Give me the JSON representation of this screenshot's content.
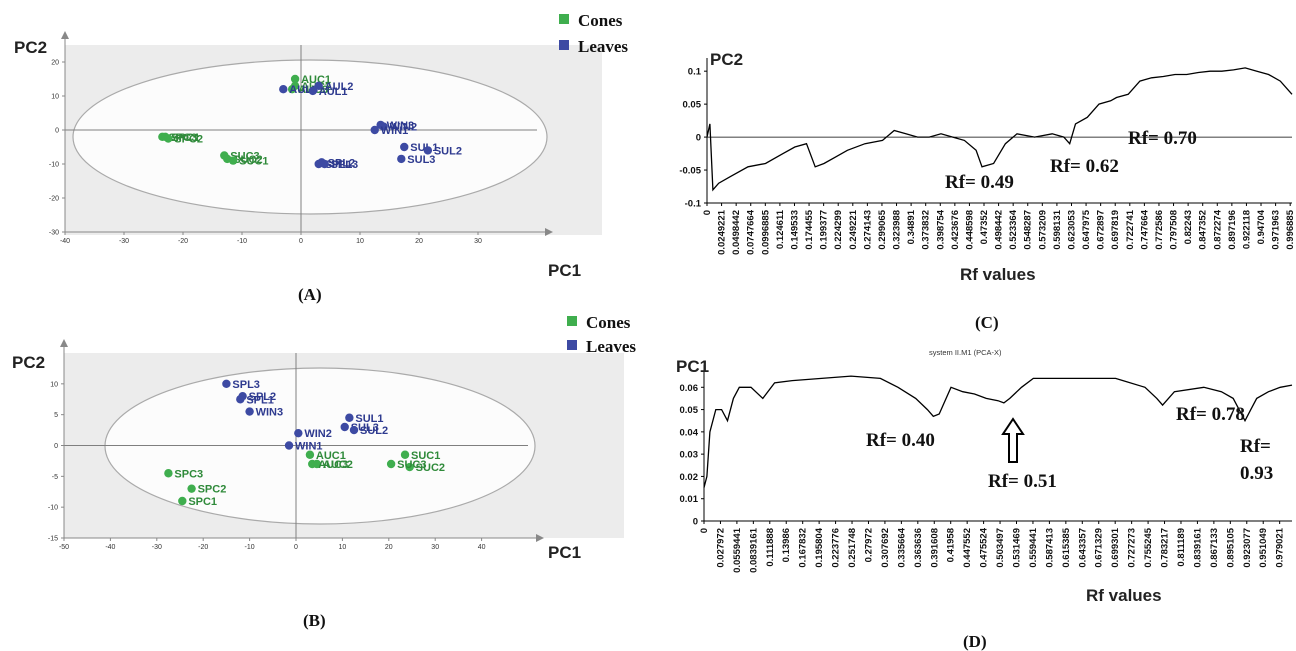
{
  "colors": {
    "cones": "#3fae4e",
    "leaves": "#3d4aa3",
    "cones_text": "#2f8a3a",
    "leaves_text": "#2e3a8f",
    "plot_bg": "#ececec",
    "line": "#000000"
  },
  "legend": {
    "cones": "Cones",
    "leaves": "Leaves"
  },
  "chart_data": [
    {
      "panel": "(A)",
      "type": "scatter",
      "xlabel": "PC1",
      "ylabel": "PC2",
      "xlim": [
        -40,
        40
      ],
      "ylim": [
        -30,
        25
      ],
      "xticks": [
        -40,
        -30,
        -20,
        -10,
        0,
        10,
        20,
        30
      ],
      "yticks": [
        -30,
        -20,
        -10,
        0,
        10,
        20
      ],
      "series": [
        {
          "name": "Cones",
          "points": [
            {
              "label": "AUC1",
              "x": -1.0,
              "y": 15.0
            },
            {
              "label": "AUC2",
              "x": -1.0,
              "y": 13.0
            },
            {
              "label": "AUC3",
              "x": -1.5,
              "y": 12.0
            },
            {
              "label": "SPC3",
              "x": -23.5,
              "y": -2.0
            },
            {
              "label": "SPC1",
              "x": -23.0,
              "y": -2.0
            },
            {
              "label": "SPC2",
              "x": -22.5,
              "y": -2.5
            },
            {
              "label": "SUC3",
              "x": -13.0,
              "y": -7.5
            },
            {
              "label": "SUC2",
              "x": -12.5,
              "y": -8.5
            },
            {
              "label": "SUC1",
              "x": -11.5,
              "y": -9.0
            }
          ]
        },
        {
          "name": "Leaves",
          "points": [
            {
              "label": "AUL3",
              "x": -3.0,
              "y": 12.0
            },
            {
              "label": "AUL2",
              "x": 3.0,
              "y": 13.0
            },
            {
              "label": "AUL1",
              "x": 2.0,
              "y": 11.5
            },
            {
              "label": "WIN3",
              "x": 13.5,
              "y": 1.5
            },
            {
              "label": "WIN2",
              "x": 14.0,
              "y": 1.0
            },
            {
              "label": "WIN1",
              "x": 12.5,
              "y": 0.0
            },
            {
              "label": "SUL1",
              "x": 17.5,
              "y": -5.0
            },
            {
              "label": "SUL2",
              "x": 21.5,
              "y": -6.0
            },
            {
              "label": "SUL3",
              "x": 17.0,
              "y": -8.5
            },
            {
              "label": "SPL1",
              "x": 3.0,
              "y": -10.0
            },
            {
              "label": "SPL2",
              "x": 3.5,
              "y": -9.5
            },
            {
              "label": "SPL3",
              "x": 4.0,
              "y": -10.0
            }
          ]
        }
      ],
      "legend": "top-right"
    },
    {
      "panel": "(B)",
      "type": "scatter",
      "xlabel": "PC1",
      "ylabel": "PC2",
      "xlim": [
        -50,
        50
      ],
      "ylim": [
        -15,
        15
      ],
      "xticks": [
        -50,
        -40,
        -30,
        -20,
        -10,
        0,
        10,
        20,
        30,
        40
      ],
      "yticks": [
        -15,
        -10,
        -5,
        0,
        5,
        10
      ],
      "series": [
        {
          "name": "Cones",
          "points": [
            {
              "label": "AUC1",
              "x": 3.0,
              "y": -1.5
            },
            {
              "label": "AUC2",
              "x": 4.5,
              "y": -3.0
            },
            {
              "label": "AUC3",
              "x": 3.5,
              "y": -3.0
            },
            {
              "label": "SUC1",
              "x": 23.5,
              "y": -1.5
            },
            {
              "label": "SUC2",
              "x": 24.5,
              "y": -3.5
            },
            {
              "label": "SUC3",
              "x": 20.5,
              "y": -3.0
            },
            {
              "label": "SPC3",
              "x": -27.5,
              "y": -4.5
            },
            {
              "label": "SPC2",
              "x": -22.5,
              "y": -7.0
            },
            {
              "label": "SPC1",
              "x": -24.5,
              "y": -9.0
            }
          ]
        },
        {
          "name": "Leaves",
          "points": [
            {
              "label": "SPL3",
              "x": -15.0,
              "y": 10.0
            },
            {
              "label": "SPL1",
              "x": -12.0,
              "y": 7.5
            },
            {
              "label": "SPL2",
              "x": -11.5,
              "y": 8.0
            },
            {
              "label": "WIN3",
              "x": -10.0,
              "y": 5.5
            },
            {
              "label": "WIN1",
              "x": -1.5,
              "y": 0.0
            },
            {
              "label": "WIN2",
              "x": 0.5,
              "y": 2.0
            },
            {
              "label": "SUL1",
              "x": 11.5,
              "y": 4.5
            },
            {
              "label": "SUL3",
              "x": 10.5,
              "y": 3.0
            },
            {
              "label": "SUL2",
              "x": 12.5,
              "y": 2.5
            }
          ]
        }
      ],
      "legend": "top-right"
    },
    {
      "panel": "(C)",
      "type": "line",
      "xlabel": "Rf values",
      "ylabel": "PC2",
      "xlim": [
        0,
        1
      ],
      "ylim": [
        -0.1,
        0.12
      ],
      "yticks": [
        "-0.1",
        "-0.05",
        "0",
        "0.05",
        "0.1"
      ],
      "xticks": [
        "0",
        "0.0249221",
        "0.0498442",
        "0.0747664",
        "0.0996885",
        "0.124611",
        "0.149533",
        "0.174455",
        "0.199377",
        "0.224299",
        "0.249221",
        "0.274143",
        "0.299065",
        "0.323988",
        "0.34891",
        "0.373832",
        "0.398754",
        "0.423676",
        "0.448598",
        "0.47352",
        "0.498442",
        "0.523364",
        "0.548287",
        "0.573209",
        "0.598131",
        "0.623053",
        "0.647975",
        "0.672897",
        "0.697819",
        "0.722741",
        "0.747664",
        "0.772586",
        "0.797508",
        "0.82243",
        "0.847352",
        "0.872274",
        "0.897196",
        "0.922118",
        "0.94704",
        "0.971963",
        "0.996885"
      ],
      "x": [
        0.0,
        0.005,
        0.01,
        0.02,
        0.04,
        0.07,
        0.1,
        0.13,
        0.15,
        0.17,
        0.185,
        0.2,
        0.22,
        0.24,
        0.27,
        0.3,
        0.32,
        0.34,
        0.36,
        0.38,
        0.4,
        0.42,
        0.44,
        0.46,
        0.47,
        0.49,
        0.51,
        0.53,
        0.56,
        0.59,
        0.61,
        0.62,
        0.63,
        0.65,
        0.67,
        0.69,
        0.7,
        0.72,
        0.74,
        0.76,
        0.78,
        0.8,
        0.82,
        0.84,
        0.86,
        0.88,
        0.9,
        0.92,
        0.94,
        0.96,
        0.98,
        1.0
      ],
      "y": [
        0.0,
        0.02,
        -0.08,
        -0.07,
        -0.06,
        -0.045,
        -0.04,
        -0.025,
        -0.015,
        -0.01,
        -0.045,
        -0.04,
        -0.03,
        -0.02,
        -0.01,
        -0.005,
        0.01,
        0.005,
        0.0,
        0.0,
        0.005,
        0.0,
        -0.005,
        -0.02,
        -0.045,
        -0.04,
        -0.01,
        0.005,
        0.0,
        0.005,
        0.0,
        -0.01,
        0.02,
        0.03,
        0.05,
        0.055,
        0.06,
        0.065,
        0.085,
        0.09,
        0.092,
        0.095,
        0.095,
        0.098,
        0.1,
        0.1,
        0.102,
        0.105,
        0.1,
        0.095,
        0.085,
        0.065
      ],
      "annotations": [
        "Rf= 0.49",
        "Rf= 0.62",
        "Rf= 0.70"
      ]
    },
    {
      "panel": "(D)",
      "type": "line",
      "subtitle": "system II.M1 (PCA-X)",
      "xlabel": "Rf values",
      "ylabel": "PC1",
      "xlim": [
        0,
        1
      ],
      "ylim": [
        0,
        0.07
      ],
      "yticks": [
        "0",
        "0.01",
        "0.02",
        "0.03",
        "0.04",
        "0.05",
        "0.06"
      ],
      "xticks": [
        "0",
        "0.027972",
        "0.0559441",
        "0.0839161",
        "0.111888",
        "0.13986",
        "0.167832",
        "0.195804",
        "0.223776",
        "0.251748",
        "0.27972",
        "0.307692",
        "0.335664",
        "0.363636",
        "0.391608",
        "0.41958",
        "0.447552",
        "0.475524",
        "0.503497",
        "0.531469",
        "0.559441",
        "0.587413",
        "0.615385",
        "0.643357",
        "0.671329",
        "0.699301",
        "0.727273",
        "0.755245",
        "0.783217",
        "0.811189",
        "0.839161",
        "0.867133",
        "0.895105",
        "0.923077",
        "0.951049",
        "0.979021"
      ],
      "x": [
        0.0,
        0.005,
        0.01,
        0.02,
        0.03,
        0.04,
        0.05,
        0.06,
        0.08,
        0.1,
        0.12,
        0.15,
        0.2,
        0.25,
        0.3,
        0.33,
        0.36,
        0.38,
        0.39,
        0.4,
        0.42,
        0.44,
        0.46,
        0.48,
        0.5,
        0.51,
        0.52,
        0.54,
        0.56,
        0.6,
        0.65,
        0.7,
        0.75,
        0.77,
        0.78,
        0.8,
        0.85,
        0.88,
        0.9,
        0.91,
        0.92,
        0.93,
        0.94,
        0.96,
        0.98,
        1.0
      ],
      "y": [
        0.015,
        0.02,
        0.04,
        0.05,
        0.05,
        0.045,
        0.055,
        0.06,
        0.06,
        0.055,
        0.062,
        0.063,
        0.064,
        0.065,
        0.064,
        0.06,
        0.055,
        0.05,
        0.047,
        0.048,
        0.06,
        0.058,
        0.057,
        0.055,
        0.054,
        0.053,
        0.055,
        0.06,
        0.064,
        0.064,
        0.064,
        0.064,
        0.06,
        0.055,
        0.052,
        0.058,
        0.06,
        0.058,
        0.055,
        0.05,
        0.045,
        0.05,
        0.055,
        0.058,
        0.06,
        0.061
      ],
      "annotations": [
        "Rf= 0.40",
        "Rf= 0.51",
        "Rf= 0.78",
        "Rf=",
        "0.93"
      ]
    }
  ]
}
